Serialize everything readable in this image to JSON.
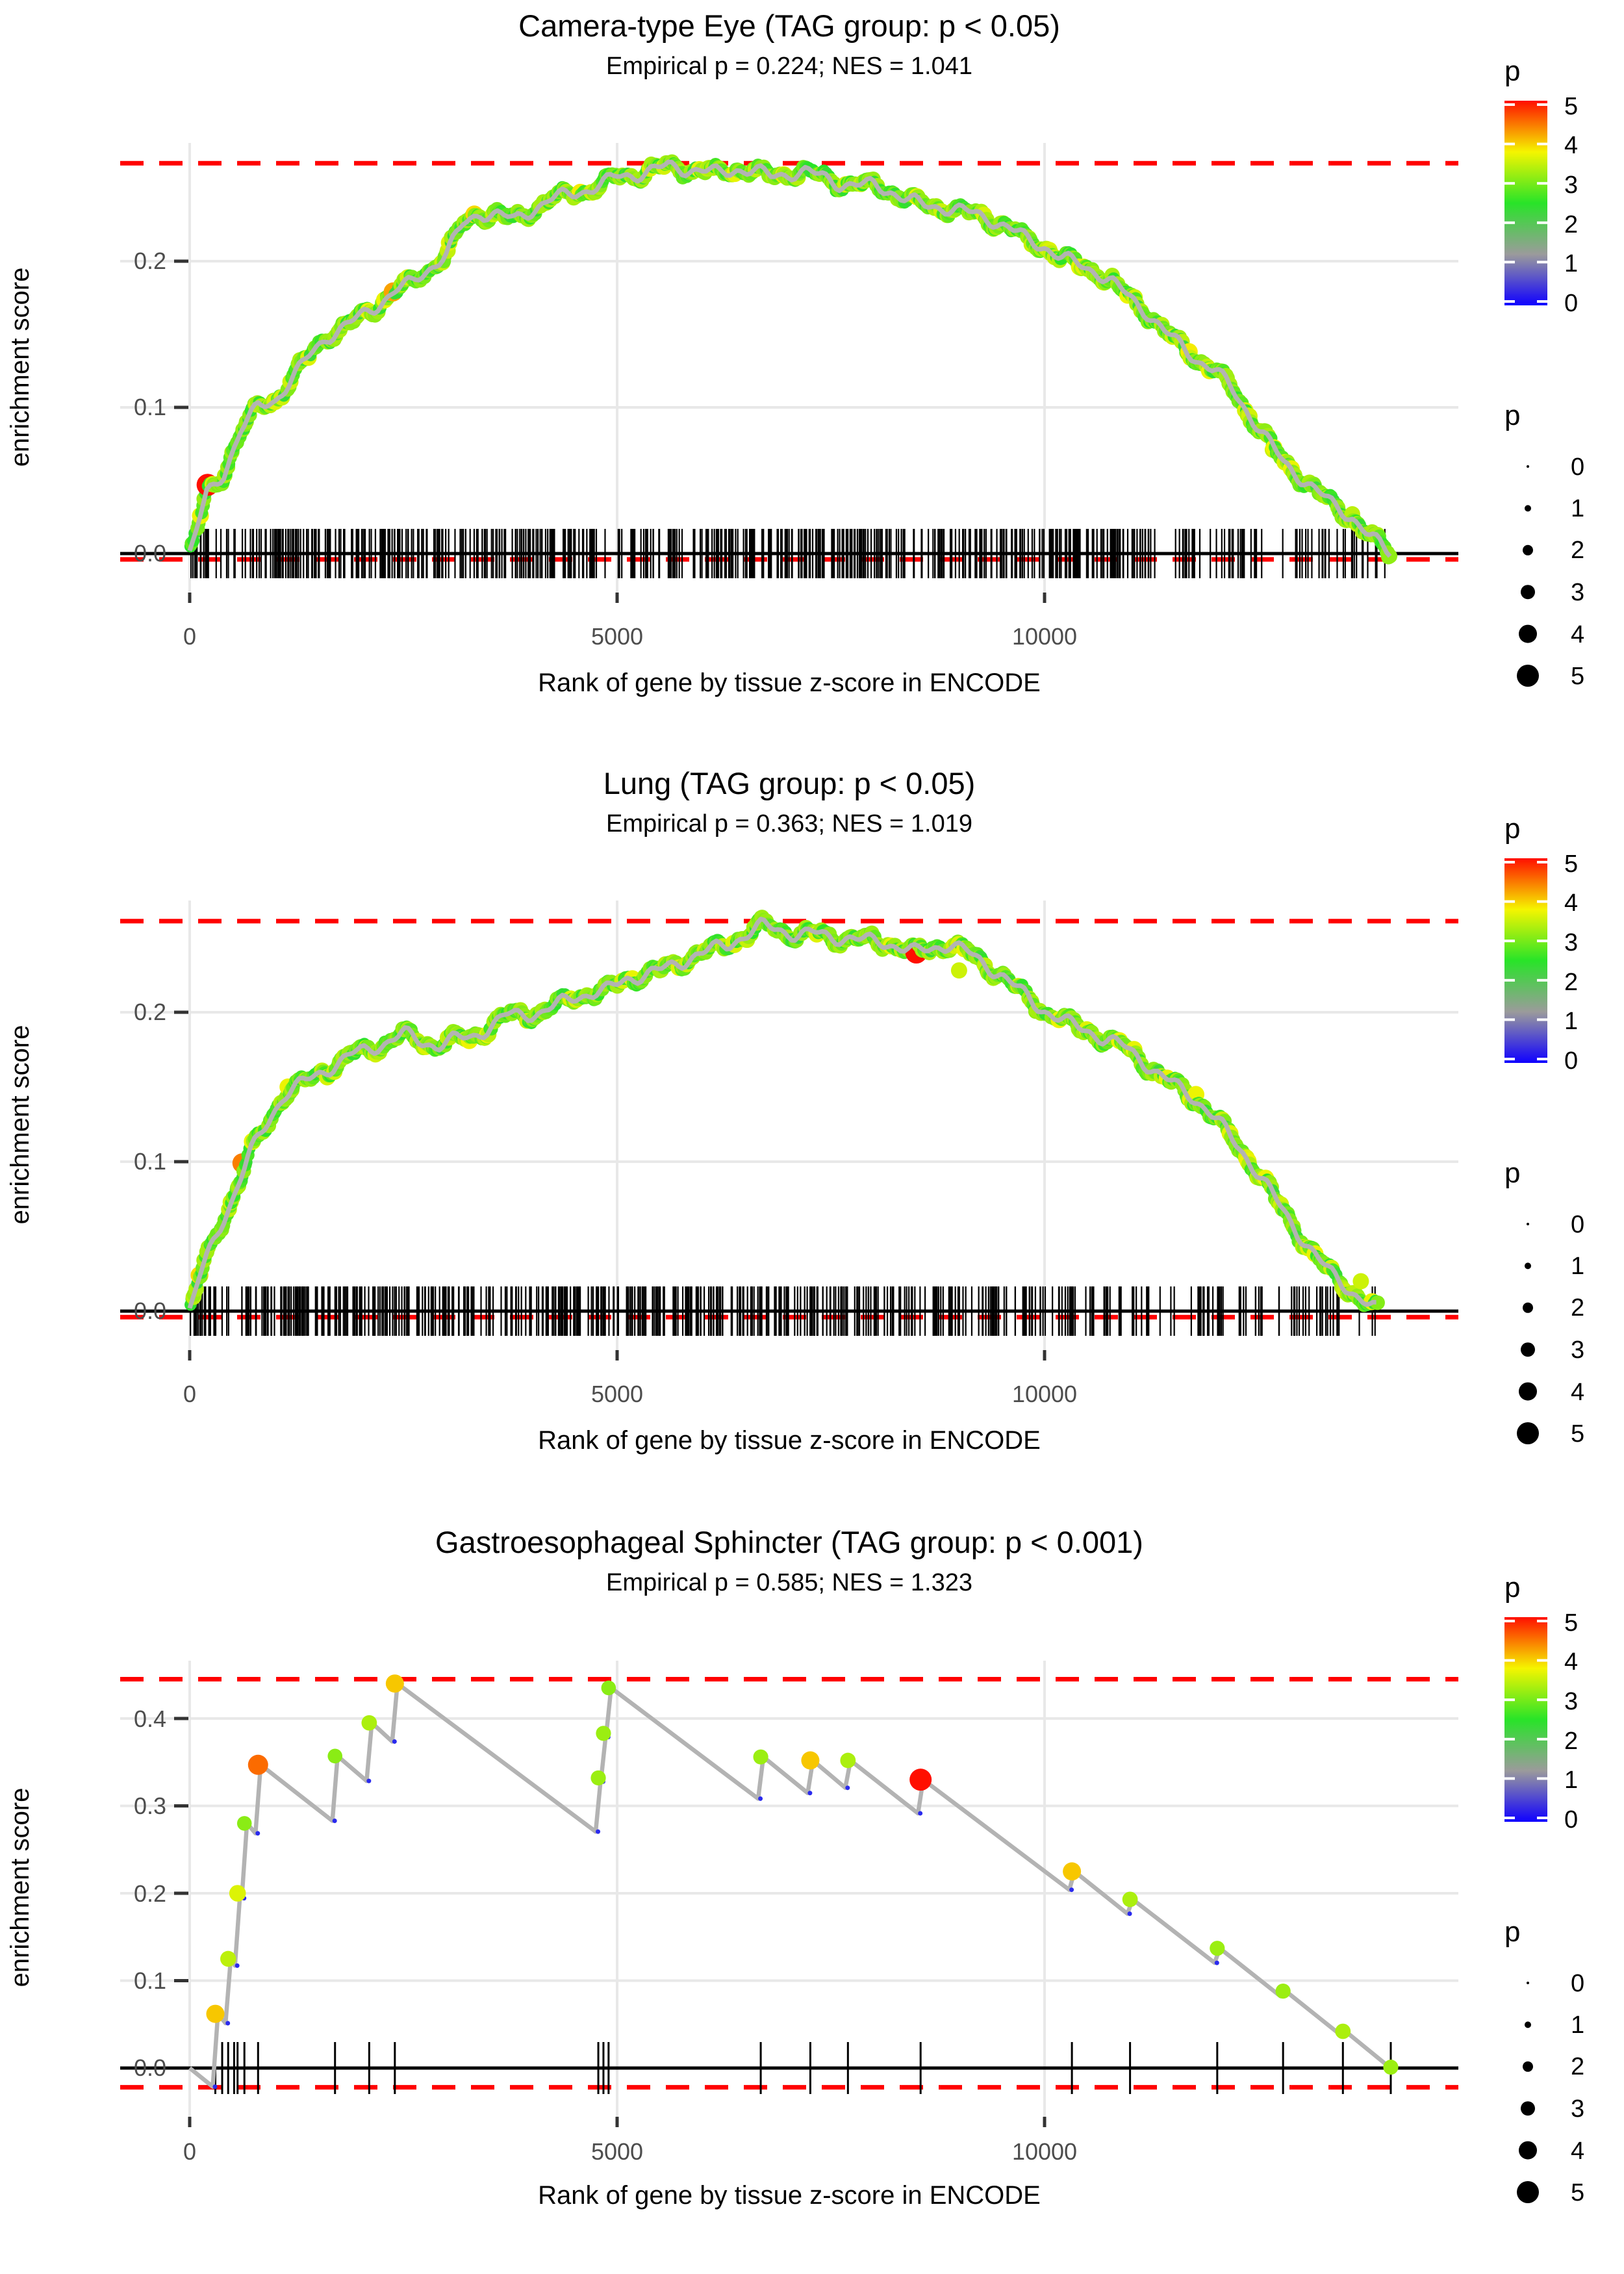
{
  "chart_data": {
    "type": "line",
    "figure_kind": "GSEA enrichment plots, 3 stacked panels",
    "background": "#ffffff",
    "colors": {
      "threshold_line": "#ff0000",
      "running_line": "#b3b3b3",
      "axis_line": "#000000",
      "gridline": "#e8e8e8",
      "tick_label": "#4d4d4d",
      "rug": "#000000",
      "dip_point": "#2a2aee"
    },
    "legend": {
      "color": {
        "title": "p",
        "labels": [
          "5",
          "4",
          "3",
          "2",
          "1",
          "0"
        ],
        "domain": [
          0,
          5
        ],
        "stops": [
          "#0f00ff",
          "#9b9b9b",
          "#28e428",
          "#f5f500",
          "#ff0f00"
        ]
      },
      "size": {
        "title": "p",
        "labels": [
          "0",
          "1",
          "2",
          "3",
          "4",
          "5"
        ],
        "values": [
          0,
          1,
          2,
          3,
          4,
          5
        ]
      }
    },
    "panels": [
      {
        "tissue": "Camera-type Eye",
        "title": "Camera-type Eye (TAG group: p < 0.05)",
        "subtitle": "Empirical p = 0.224; NES = 1.041",
        "empirical_p": 0.224,
        "nes": 1.041,
        "tag_threshold": "p < 0.05",
        "xlabel": "Rank of gene by tissue z-score in ENCODE",
        "ylabel": "enrichment score",
        "x_tick_labels": [
          "0",
          "5000",
          "10000"
        ],
        "x_tick_values": [
          0,
          5000,
          10000
        ],
        "y_tick_labels": [
          "0.0",
          "0.1",
          "0.2"
        ],
        "y_tick_values": [
          0,
          0.1,
          0.2
        ],
        "upper_threshold": 0.267,
        "lower_threshold": -0.004,
        "rank_max": 14050,
        "curve_anchors": [
          [
            0,
            0
          ],
          [
            200,
            0.04
          ],
          [
            400,
            0.055
          ],
          [
            600,
            0.085
          ],
          [
            800,
            0.1
          ],
          [
            1000,
            0.105
          ],
          [
            1200,
            0.12
          ],
          [
            1400,
            0.135
          ],
          [
            1600,
            0.148
          ],
          [
            1800,
            0.155
          ],
          [
            2000,
            0.162
          ],
          [
            2200,
            0.17
          ],
          [
            2400,
            0.18
          ],
          [
            2600,
            0.185
          ],
          [
            2800,
            0.195
          ],
          [
            3000,
            0.205
          ],
          [
            3200,
            0.225
          ],
          [
            3400,
            0.233
          ],
          [
            3600,
            0.232
          ],
          [
            3800,
            0.228
          ],
          [
            4000,
            0.235
          ],
          [
            4200,
            0.242
          ],
          [
            4400,
            0.245
          ],
          [
            4600,
            0.248
          ],
          [
            4800,
            0.252
          ],
          [
            5000,
            0.258
          ],
          [
            5200,
            0.259
          ],
          [
            5400,
            0.262
          ],
          [
            5600,
            0.265
          ],
          [
            5800,
            0.263
          ],
          [
            6000,
            0.262
          ],
          [
            6200,
            0.26
          ],
          [
            6400,
            0.263
          ],
          [
            6600,
            0.262
          ],
          [
            6800,
            0.258
          ],
          [
            7000,
            0.26
          ],
          [
            7200,
            0.261
          ],
          [
            7400,
            0.258
          ],
          [
            7600,
            0.253
          ],
          [
            7800,
            0.252
          ],
          [
            8000,
            0.252
          ],
          [
            8200,
            0.248
          ],
          [
            8400,
            0.242
          ],
          [
            8600,
            0.238
          ],
          [
            8800,
            0.237
          ],
          [
            9000,
            0.235
          ],
          [
            9200,
            0.232
          ],
          [
            9400,
            0.228
          ],
          [
            9600,
            0.222
          ],
          [
            9800,
            0.215
          ],
          [
            10000,
            0.21
          ],
          [
            10200,
            0.202
          ],
          [
            10400,
            0.198
          ],
          [
            10600,
            0.193
          ],
          [
            10800,
            0.185
          ],
          [
            11000,
            0.175
          ],
          [
            11200,
            0.165
          ],
          [
            11400,
            0.152
          ],
          [
            11600,
            0.142
          ],
          [
            11800,
            0.132
          ],
          [
            12000,
            0.125
          ],
          [
            12200,
            0.112
          ],
          [
            12400,
            0.095
          ],
          [
            12600,
            0.078
          ],
          [
            12800,
            0.062
          ],
          [
            13000,
            0.052
          ],
          [
            13200,
            0.042
          ],
          [
            13400,
            0.032
          ],
          [
            13600,
            0.025
          ],
          [
            13800,
            0.012
          ],
          [
            14000,
            0.002
          ],
          [
            14050,
            0
          ]
        ],
        "special_points": [
          [
            210,
            0.047,
            5.0
          ],
          [
            2120,
            0.165,
            3.5
          ],
          [
            2380,
            0.179,
            4.2
          ],
          [
            3330,
            0.232,
            3.9
          ],
          [
            4570,
            0.247,
            3.8
          ],
          [
            6950,
            0.259,
            3.8
          ],
          [
            11690,
            0.138,
            3.8
          ],
          [
            12670,
            0.071,
            3.5
          ],
          [
            13600,
            0.027,
            3.4
          ]
        ],
        "rug": {
          "style": "dense",
          "n": 640,
          "seed": 7,
          "rank_end": 14050
        }
      },
      {
        "tissue": "Lung",
        "title": "Lung (TAG group: p < 0.05)",
        "subtitle": "Empirical p = 0.363; NES = 1.019",
        "empirical_p": 0.363,
        "nes": 1.019,
        "tag_threshold": "p < 0.05",
        "xlabel": "Rank of gene by tissue z-score in ENCODE",
        "ylabel": "enrichment score",
        "x_tick_labels": [
          "0",
          "5000",
          "10000"
        ],
        "x_tick_values": [
          0,
          5000,
          10000
        ],
        "y_tick_labels": [
          "0.0",
          "0.1",
          "0.2"
        ],
        "y_tick_values": [
          0,
          0.1,
          0.2
        ],
        "upper_threshold": 0.261,
        "lower_threshold": -0.004,
        "rank_max": 13900,
        "curve_anchors": [
          [
            0,
            0
          ],
          [
            100,
            0.02
          ],
          [
            300,
            0.05
          ],
          [
            500,
            0.075
          ],
          [
            700,
            0.105
          ],
          [
            900,
            0.125
          ],
          [
            1100,
            0.145
          ],
          [
            1300,
            0.152
          ],
          [
            1500,
            0.158
          ],
          [
            1700,
            0.165
          ],
          [
            1900,
            0.172
          ],
          [
            2100,
            0.175
          ],
          [
            2300,
            0.18
          ],
          [
            2500,
            0.186
          ],
          [
            2700,
            0.18
          ],
          [
            2900,
            0.178
          ],
          [
            3100,
            0.182
          ],
          [
            3300,
            0.183
          ],
          [
            3500,
            0.19
          ],
          [
            3700,
            0.198
          ],
          [
            3900,
            0.198
          ],
          [
            4100,
            0.2
          ],
          [
            4300,
            0.205
          ],
          [
            4500,
            0.21
          ],
          [
            4700,
            0.213
          ],
          [
            4900,
            0.215
          ],
          [
            5100,
            0.222
          ],
          [
            5300,
            0.225
          ],
          [
            5500,
            0.228
          ],
          [
            5700,
            0.232
          ],
          [
            5900,
            0.238
          ],
          [
            6100,
            0.242
          ],
          [
            6300,
            0.245
          ],
          [
            6500,
            0.252
          ],
          [
            6700,
            0.258
          ],
          [
            6900,
            0.255
          ],
          [
            7100,
            0.252
          ],
          [
            7300,
            0.253
          ],
          [
            7500,
            0.25
          ],
          [
            7700,
            0.25
          ],
          [
            7900,
            0.248
          ],
          [
            8100,
            0.247
          ],
          [
            8300,
            0.244
          ],
          [
            8500,
            0.24
          ],
          [
            8700,
            0.243
          ],
          [
            8900,
            0.246
          ],
          [
            9100,
            0.24
          ],
          [
            9300,
            0.232
          ],
          [
            9500,
            0.225
          ],
          [
            9700,
            0.215
          ],
          [
            9900,
            0.205
          ],
          [
            10100,
            0.198
          ],
          [
            10300,
            0.192
          ],
          [
            10500,
            0.188
          ],
          [
            10700,
            0.182
          ],
          [
            10900,
            0.178
          ],
          [
            11100,
            0.17
          ],
          [
            11300,
            0.16
          ],
          [
            11500,
            0.152
          ],
          [
            11700,
            0.145
          ],
          [
            11900,
            0.135
          ],
          [
            12100,
            0.122
          ],
          [
            12300,
            0.108
          ],
          [
            12500,
            0.092
          ],
          [
            12700,
            0.075
          ],
          [
            12900,
            0.058
          ],
          [
            13100,
            0.042
          ],
          [
            13300,
            0.028
          ],
          [
            13500,
            0.018
          ],
          [
            13700,
            0.008
          ],
          [
            13900,
            0
          ]
        ],
        "special_points": [
          [
            115,
            0.024,
            3.9
          ],
          [
            480,
            0.073,
            3.5
          ],
          [
            615,
            0.099,
            4.4
          ],
          [
            1150,
            0.15,
            3.7
          ],
          [
            3270,
            0.181,
            3.7
          ],
          [
            8500,
            0.24,
            5.0
          ],
          [
            9000,
            0.228,
            3.5
          ],
          [
            11770,
            0.145,
            3.7
          ],
          [
            13700,
            0.02,
            3.5
          ]
        ],
        "rug": {
          "style": "dense",
          "n": 640,
          "seed": 11,
          "rank_end": 13900
        }
      },
      {
        "tissue": "Gastroesophageal Sphincter",
        "title": "Gastroesophageal Sphincter (TAG group: p < 0.001)",
        "subtitle": "Empirical p = 0.585; NES = 1.323",
        "empirical_p": 0.585,
        "nes": 1.323,
        "tag_threshold": "p < 0.001",
        "xlabel": "Rank of gene by tissue z-score in ENCODE",
        "ylabel": "enrichment score",
        "x_tick_labels": [
          "0",
          "5000",
          "10000"
        ],
        "x_tick_values": [
          0,
          5000,
          10000
        ],
        "y_tick_labels": [
          "0.0",
          "0.1",
          "0.2",
          "0.3",
          "0.4"
        ],
        "y_tick_values": [
          0,
          0.1,
          0.2,
          0.3,
          0.4
        ],
        "upper_threshold": 0.445,
        "lower_threshold": -0.022,
        "rank_max": 14050,
        "decay_per_rank": 7.12e-05,
        "genes": [
          [
            300,
            0.062,
            4.0
          ],
          [
            450,
            0.125,
            3.4
          ],
          [
            560,
            0.2,
            3.6
          ],
          [
            640,
            0.28,
            3.1
          ],
          [
            800,
            0.347,
            4.5
          ],
          [
            1700,
            0.357,
            3.1
          ],
          [
            2100,
            0.395,
            3.3
          ],
          [
            2400,
            0.44,
            4.0
          ],
          [
            4780,
            0.332,
            3.2
          ],
          [
            4840,
            0.383,
            3.2
          ],
          [
            4900,
            0.435,
            3.1
          ],
          [
            6680,
            0.356,
            3.2
          ],
          [
            7260,
            0.352,
            4.0
          ],
          [
            7700,
            0.352,
            3.3
          ],
          [
            8550,
            0.33,
            5.0
          ],
          [
            10320,
            0.225,
            4.0
          ],
          [
            11000,
            0.193,
            3.3
          ],
          [
            12020,
            0.137,
            3.2
          ],
          [
            12790,
            0.088,
            3.2
          ],
          [
            13490,
            0.042,
            3.3
          ],
          [
            14050,
            0.001,
            3.2
          ]
        ],
        "extra_rug_ranks": [
          380,
          520
        ],
        "rug": {
          "style": "genes"
        }
      }
    ]
  }
}
